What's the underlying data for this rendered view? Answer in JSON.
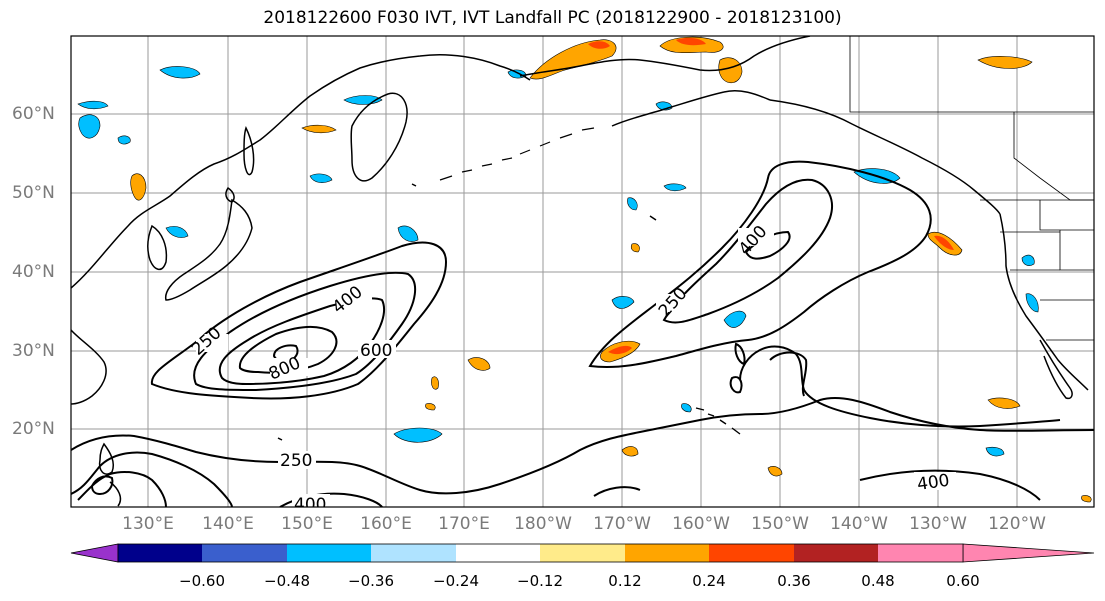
{
  "title": "2018122600 F030 IVT, IVT Landfall PC (2018122900 - 2018123100)",
  "latitude_labels": [
    "60°N",
    "50°N",
    "40°N",
    "30°N",
    "20°N"
  ],
  "longitude_labels": [
    "130°E",
    "140°E",
    "150°E",
    "160°E",
    "170°E",
    "180°W",
    "170°W",
    "160°W",
    "150°W",
    "140°W",
    "130°W",
    "120°W"
  ],
  "contour_labels": [
    "250",
    "400",
    "600",
    "800",
    "250",
    "400",
    "250",
    "400",
    "400"
  ],
  "colorbar": {
    "tick_labels": [
      "−0.60",
      "−0.48",
      "−0.36",
      "−0.24",
      "−0.12",
      "0.12",
      "0.24",
      "0.36",
      "0.48",
      "0.60"
    ],
    "colors": [
      "#9932cc",
      "#00008b",
      "#3a5fcd",
      "#00bfff",
      "#afe3ff",
      "#ffffff",
      "#ffeb8a",
      "#ffa500",
      "#ff4500",
      "#b22222",
      "#ff85b0"
    ]
  }
}
